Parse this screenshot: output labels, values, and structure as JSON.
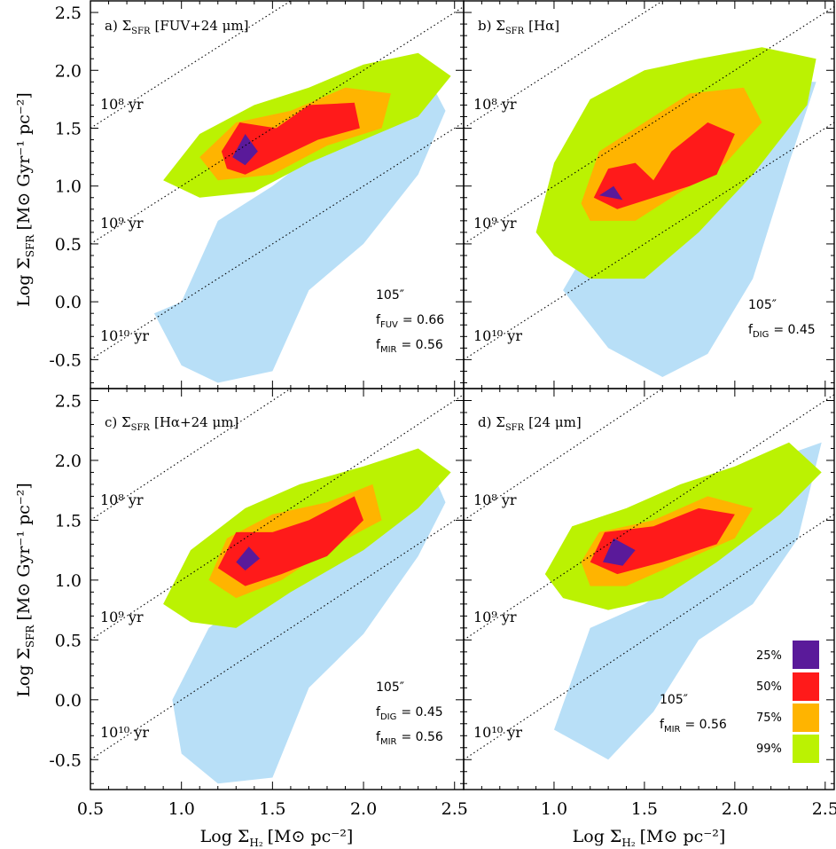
{
  "colors": {
    "25%": "#5a1a9a",
    "50%": "#ff1a1a",
    "75%": "#ffb400",
    "99%": "#bbf202",
    "tail_light": "#b8dff7",
    "tail_mid": "#6cbdf2"
  },
  "axes": {
    "xlabel": "Log Σ",
    "xlabel_sub": "H₂",
    "xlabel_unit": "[M⊙ pc⁻²]",
    "ylabel": "Log Σ",
    "ylabel_sub": "SFR",
    "ylabel_unit": "[M⊙ Gyr⁻¹ pc⁻²]",
    "x_ticks": [
      "0.5",
      "1.0",
      "1.5",
      "2.0",
      "2.5"
    ],
    "y_ticks": [
      "-0.5",
      "0.0",
      "0.5",
      "1.0",
      "1.5",
      "2.0",
      "2.5"
    ],
    "xlim": [
      0.5,
      2.55
    ],
    "ylim": [
      -0.75,
      2.6
    ]
  },
  "depletion_times": [
    "10⁸ yr",
    "10⁹ yr",
    "10¹⁰ yr"
  ],
  "legend": [
    "25%",
    "50%",
    "75%",
    "99%"
  ],
  "panels": [
    {
      "title": "a) Σ",
      "title_sub": "SFR",
      "title_tracer": "[FUV+24 μm]",
      "resolution": "105″",
      "fractions": [
        {
          "label": "f",
          "sub": "FUV",
          "value": "= 0.66"
        },
        {
          "label": "f",
          "sub": "MIR",
          "value": "= 0.56"
        }
      ]
    },
    {
      "title": "b) Σ",
      "title_sub": "SFR",
      "title_tracer": "[Hα]",
      "resolution": "105″",
      "fractions": [
        {
          "label": "f",
          "sub": "DIG",
          "value": "= 0.45"
        }
      ]
    },
    {
      "title": "c) Σ",
      "title_sub": "SFR",
      "title_tracer": "[Hα+24 μm]",
      "resolution": "105″",
      "fractions": [
        {
          "label": "f",
          "sub": "DIG",
          "value": "= 0.45"
        },
        {
          "label": "f",
          "sub": "MIR",
          "value": "= 0.56"
        }
      ]
    },
    {
      "title": "d) Σ",
      "title_sub": "SFR",
      "title_tracer": "[24 μm]",
      "resolution": "105″",
      "fractions": [
        {
          "label": "f",
          "sub": "MIR",
          "value": "= 0.56"
        }
      ]
    }
  ],
  "chart_data": {
    "type": "heatmap",
    "description_of_levels": [
      "25%",
      "50%",
      "75%",
      "99%"
    ],
    "depletion_lines_yr": [
      100000000.0,
      1000000000.0,
      10000000000.0
    ],
    "panels": [
      {
        "id": "a",
        "levels": {
          "tail": [
            [
              1.0,
              -0.55
            ],
            [
              1.2,
              -0.7
            ],
            [
              1.5,
              -0.6
            ],
            [
              1.7,
              0.1
            ],
            [
              2.0,
              0.5
            ],
            [
              2.3,
              1.1
            ],
            [
              2.45,
              1.65
            ],
            [
              2.35,
              1.95
            ],
            [
              2.0,
              1.6
            ],
            [
              1.5,
              1.0
            ],
            [
              1.2,
              0.7
            ],
            [
              1.0,
              0.0
            ],
            [
              0.85,
              -0.1
            ]
          ],
          "99%": [
            [
              0.9,
              1.05
            ],
            [
              1.1,
              1.45
            ],
            [
              1.4,
              1.7
            ],
            [
              1.7,
              1.85
            ],
            [
              2.0,
              2.05
            ],
            [
              2.3,
              2.15
            ],
            [
              2.48,
              1.95
            ],
            [
              2.3,
              1.6
            ],
            [
              2.0,
              1.4
            ],
            [
              1.7,
              1.2
            ],
            [
              1.4,
              0.95
            ],
            [
              1.1,
              0.9
            ]
          ],
          "75%": [
            [
              1.1,
              1.25
            ],
            [
              1.3,
              1.55
            ],
            [
              1.6,
              1.65
            ],
            [
              1.9,
              1.85
            ],
            [
              2.15,
              1.8
            ],
            [
              2.1,
              1.5
            ],
            [
              1.8,
              1.35
            ],
            [
              1.5,
              1.1
            ],
            [
              1.2,
              1.05
            ]
          ],
          "50%": [
            [
              1.22,
              1.3
            ],
            [
              1.32,
              1.55
            ],
            [
              1.52,
              1.5
            ],
            [
              1.7,
              1.7
            ],
            [
              1.95,
              1.72
            ],
            [
              1.98,
              1.5
            ],
            [
              1.75,
              1.4
            ],
            [
              1.55,
              1.25
            ],
            [
              1.35,
              1.1
            ],
            [
              1.25,
              1.15
            ]
          ],
          "25%": [
            [
              1.28,
              1.25
            ],
            [
              1.35,
              1.45
            ],
            [
              1.42,
              1.3
            ],
            [
              1.35,
              1.18
            ]
          ]
        }
      },
      {
        "id": "b",
        "levels": {
          "tail": [
            [
              1.05,
              0.1
            ],
            [
              1.3,
              -0.4
            ],
            [
              1.6,
              -0.65
            ],
            [
              1.85,
              -0.45
            ],
            [
              2.1,
              0.2
            ],
            [
              2.3,
              1.2
            ],
            [
              2.45,
              1.9
            ],
            [
              2.2,
              1.9
            ],
            [
              1.9,
              1.3
            ],
            [
              1.5,
              0.8
            ],
            [
              1.2,
              0.5
            ]
          ],
          "99%": [
            [
              0.9,
              0.6
            ],
            [
              1.0,
              1.2
            ],
            [
              1.2,
              1.75
            ],
            [
              1.5,
              2.0
            ],
            [
              1.8,
              2.1
            ],
            [
              2.15,
              2.2
            ],
            [
              2.45,
              2.1
            ],
            [
              2.4,
              1.7
            ],
            [
              2.1,
              1.1
            ],
            [
              1.8,
              0.6
            ],
            [
              1.5,
              0.2
            ],
            [
              1.2,
              0.2
            ],
            [
              1.0,
              0.4
            ]
          ],
          "75%": [
            [
              1.15,
              0.85
            ],
            [
              1.25,
              1.3
            ],
            [
              1.5,
              1.55
            ],
            [
              1.75,
              1.8
            ],
            [
              2.05,
              1.85
            ],
            [
              2.15,
              1.55
            ],
            [
              1.95,
              1.2
            ],
            [
              1.7,
              0.95
            ],
            [
              1.45,
              0.7
            ],
            [
              1.2,
              0.7
            ]
          ],
          "50%": [
            [
              1.22,
              0.9
            ],
            [
              1.3,
              1.15
            ],
            [
              1.45,
              1.2
            ],
            [
              1.55,
              1.05
            ],
            [
              1.65,
              1.3
            ],
            [
              1.85,
              1.55
            ],
            [
              2.0,
              1.45
            ],
            [
              1.9,
              1.1
            ],
            [
              1.75,
              1.0
            ],
            [
              1.55,
              0.9
            ],
            [
              1.35,
              0.8
            ]
          ],
          "25%": [
            [
              1.25,
              0.92
            ],
            [
              1.33,
              1.0
            ],
            [
              1.38,
              0.88
            ]
          ]
        }
      },
      {
        "id": "c",
        "levels": {
          "tail": [
            [
              1.0,
              -0.45
            ],
            [
              1.2,
              -0.7
            ],
            [
              1.5,
              -0.65
            ],
            [
              1.7,
              0.1
            ],
            [
              2.0,
              0.55
            ],
            [
              2.3,
              1.2
            ],
            [
              2.45,
              1.65
            ],
            [
              2.35,
              2.0
            ],
            [
              2.0,
              1.6
            ],
            [
              1.5,
              1.0
            ],
            [
              1.15,
              0.6
            ],
            [
              0.95,
              0.0
            ]
          ],
          "99%": [
            [
              0.9,
              0.8
            ],
            [
              1.05,
              1.25
            ],
            [
              1.35,
              1.6
            ],
            [
              1.65,
              1.8
            ],
            [
              2.0,
              1.95
            ],
            [
              2.3,
              2.1
            ],
            [
              2.48,
              1.9
            ],
            [
              2.3,
              1.6
            ],
            [
              2.0,
              1.25
            ],
            [
              1.6,
              0.9
            ],
            [
              1.3,
              0.6
            ],
            [
              1.05,
              0.65
            ]
          ],
          "75%": [
            [
              1.15,
              1.0
            ],
            [
              1.25,
              1.35
            ],
            [
              1.5,
              1.55
            ],
            [
              1.8,
              1.65
            ],
            [
              2.05,
              1.8
            ],
            [
              2.1,
              1.5
            ],
            [
              1.85,
              1.3
            ],
            [
              1.55,
              1.0
            ],
            [
              1.3,
              0.85
            ]
          ],
          "50%": [
            [
              1.2,
              1.1
            ],
            [
              1.3,
              1.4
            ],
            [
              1.5,
              1.4
            ],
            [
              1.7,
              1.5
            ],
            [
              1.95,
              1.7
            ],
            [
              2.0,
              1.5
            ],
            [
              1.8,
              1.2
            ],
            [
              1.55,
              1.05
            ],
            [
              1.35,
              0.95
            ]
          ],
          "25%": [
            [
              1.3,
              1.15
            ],
            [
              1.37,
              1.28
            ],
            [
              1.43,
              1.18
            ],
            [
              1.35,
              1.08
            ]
          ]
        }
      },
      {
        "id": "d",
        "levels": {
          "tail": [
            [
              1.0,
              -0.25
            ],
            [
              1.3,
              -0.5
            ],
            [
              1.55,
              -0.1
            ],
            [
              1.8,
              0.5
            ],
            [
              2.1,
              0.8
            ],
            [
              2.35,
              1.35
            ],
            [
              2.48,
              2.15
            ],
            [
              2.2,
              2.0
            ],
            [
              1.8,
              1.1
            ],
            [
              1.5,
              0.8
            ],
            [
              1.2,
              0.6
            ]
          ],
          "99%": [
            [
              0.95,
              1.05
            ],
            [
              1.1,
              1.45
            ],
            [
              1.4,
              1.6
            ],
            [
              1.7,
              1.8
            ],
            [
              2.0,
              1.95
            ],
            [
              2.3,
              2.15
            ],
            [
              2.48,
              1.9
            ],
            [
              2.25,
              1.55
            ],
            [
              1.9,
              1.15
            ],
            [
              1.6,
              0.85
            ],
            [
              1.3,
              0.75
            ],
            [
              1.05,
              0.85
            ]
          ],
          "75%": [
            [
              1.15,
              1.15
            ],
            [
              1.25,
              1.4
            ],
            [
              1.55,
              1.5
            ],
            [
              1.85,
              1.7
            ],
            [
              2.1,
              1.6
            ],
            [
              2.0,
              1.35
            ],
            [
              1.7,
              1.15
            ],
            [
              1.4,
              0.95
            ],
            [
              1.2,
              0.95
            ]
          ],
          "50%": [
            [
              1.2,
              1.15
            ],
            [
              1.28,
              1.4
            ],
            [
              1.55,
              1.45
            ],
            [
              1.8,
              1.6
            ],
            [
              2.0,
              1.55
            ],
            [
              1.9,
              1.3
            ],
            [
              1.6,
              1.15
            ],
            [
              1.35,
              1.05
            ]
          ],
          "25%": [
            [
              1.27,
              1.15
            ],
            [
              1.33,
              1.35
            ],
            [
              1.45,
              1.25
            ],
            [
              1.38,
              1.12
            ]
          ]
        }
      }
    ]
  }
}
